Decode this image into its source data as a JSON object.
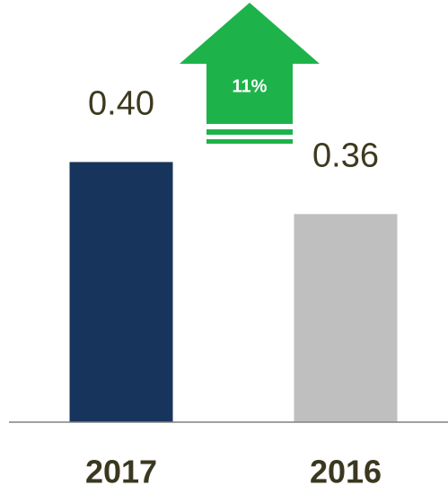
{
  "chart_data": {
    "type": "bar",
    "categories": [
      "2017",
      "2016"
    ],
    "values": [
      0.4,
      0.36
    ],
    "value_labels": [
      "0.40",
      "0.36"
    ],
    "colors": [
      "#17345c",
      "#bfbfbf"
    ],
    "ylim": [
      0.2,
      0.45
    ],
    "annotation": "11%"
  }
}
